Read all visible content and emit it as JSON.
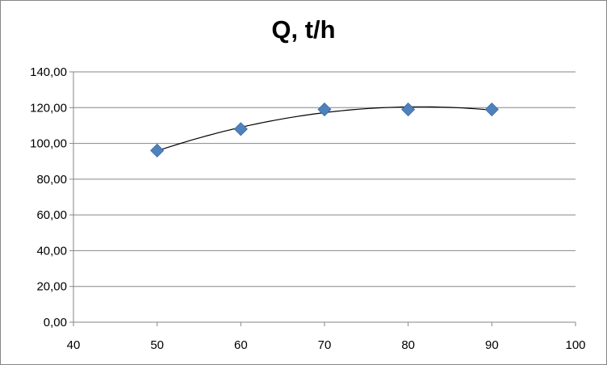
{
  "chart_data": {
    "type": "scatter",
    "title": "Q, t/h",
    "xlabel": "",
    "ylabel": "",
    "xlim": [
      40,
      100
    ],
    "ylim": [
      0,
      140
    ],
    "x_ticks": [
      "40",
      "50",
      "60",
      "70",
      "80",
      "90",
      "100"
    ],
    "y_ticks": [
      "0,00",
      "20,00",
      "40,00",
      "60,00",
      "80,00",
      "100,00",
      "120,00",
      "140,00"
    ],
    "grid": "horizontal",
    "legend": "none",
    "marker": "diamond",
    "marker_color": "#4F81BD",
    "trendline": "polynomial",
    "trendline_color": "#000000",
    "series": [
      {
        "x": [
          50,
          60,
          70,
          80,
          90
        ],
        "y": [
          96,
          108,
          119,
          119,
          119
        ]
      }
    ]
  }
}
